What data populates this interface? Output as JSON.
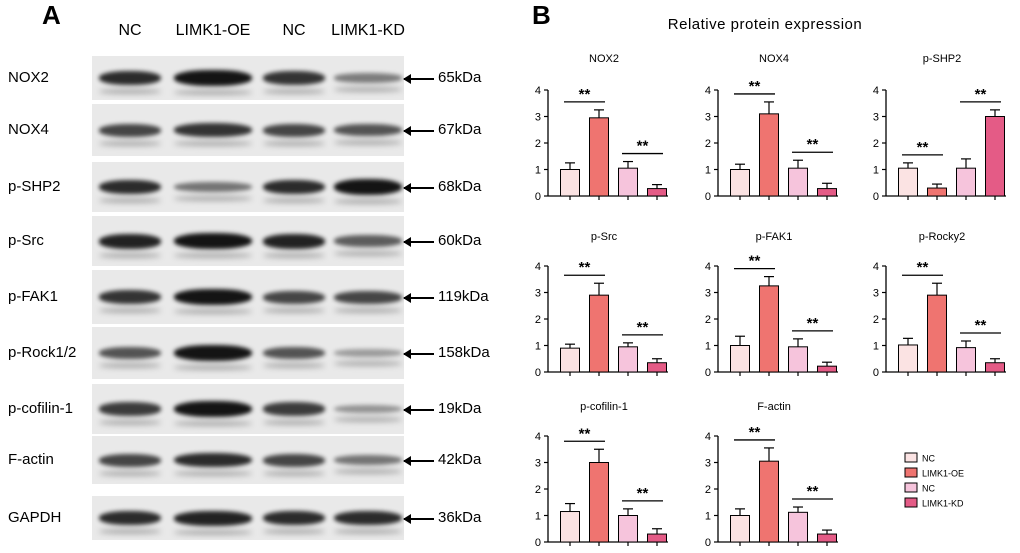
{
  "panel_a": {
    "letter": "A",
    "lanes": [
      "NC",
      "LIMK1-OE",
      "NC",
      "LIMK1-KD"
    ],
    "blots": [
      {
        "label": "NOX2",
        "kda": "65kDa",
        "bands": [
          0.85,
          1.0,
          0.8,
          0.35
        ]
      },
      {
        "label": "NOX4",
        "kda": "67kDa",
        "bands": [
          0.7,
          0.8,
          0.7,
          0.6
        ]
      },
      {
        "label": "p-SHP2",
        "kda": "68kDa",
        "bands": [
          0.85,
          0.4,
          0.85,
          1.0
        ]
      },
      {
        "label": "p-Src",
        "kda": "60kDa",
        "bands": [
          0.9,
          1.0,
          0.9,
          0.55
        ]
      },
      {
        "label": "p-FAK1",
        "kda": "119kDa",
        "bands": [
          0.8,
          1.0,
          0.7,
          0.7
        ]
      },
      {
        "label": "p-Rock1/2",
        "kda": "158kDa",
        "bands": [
          0.6,
          1.0,
          0.6,
          0.15
        ]
      },
      {
        "label": "p-cofilin-1",
        "kda": "19kDa",
        "bands": [
          0.75,
          1.0,
          0.75,
          0.2
        ]
      },
      {
        "label": "F-actin",
        "kda": "42kDa",
        "bands": [
          0.7,
          0.85,
          0.7,
          0.4
        ]
      },
      {
        "label": "GAPDH",
        "kda": "36kDa",
        "bands": [
          0.85,
          0.9,
          0.85,
          0.85
        ]
      }
    ]
  },
  "panel_b": {
    "letter": "B",
    "title": "Relative  protein  expression",
    "legend": [
      {
        "label": "NC",
        "color": "#fbe3e3"
      },
      {
        "label": "LIMK1-OE",
        "color": "#ef7470"
      },
      {
        "label": "NC",
        "color": "#f6c4dc"
      },
      {
        "label": "LIMK1-KD",
        "color": "#e45b86"
      }
    ]
  },
  "chart_data": [
    {
      "type": "bar",
      "title": "NOX2",
      "categories": [
        "NC",
        "LIMK1-OE",
        "NC",
        "LIMK1-KD"
      ],
      "values": [
        1.0,
        2.95,
        1.05,
        0.28
      ],
      "errors": [
        0.25,
        0.3,
        0.25,
        0.15
      ],
      "ylim": [
        0,
        4
      ],
      "yticks": [
        0,
        1,
        2,
        3,
        4
      ],
      "annotations": [
        "**",
        "**"
      ]
    },
    {
      "type": "bar",
      "title": "NOX4",
      "categories": [
        "NC",
        "LIMK1-OE",
        "NC",
        "LIMK1-KD"
      ],
      "values": [
        1.0,
        3.1,
        1.05,
        0.28
      ],
      "errors": [
        0.2,
        0.45,
        0.3,
        0.2
      ],
      "ylim": [
        0,
        4
      ],
      "yticks": [
        0,
        1,
        2,
        3,
        4
      ],
      "annotations": [
        "**",
        "**"
      ]
    },
    {
      "type": "bar",
      "title": "p-SHP2",
      "categories": [
        "NC",
        "LIMK1-OE",
        "NC",
        "LIMK1-KD"
      ],
      "values": [
        1.05,
        0.3,
        1.05,
        3.0
      ],
      "errors": [
        0.2,
        0.15,
        0.35,
        0.25
      ],
      "ylim": [
        0,
        4
      ],
      "yticks": [
        0,
        1,
        2,
        3,
        4
      ],
      "annotations": [
        "**",
        "**"
      ]
    },
    {
      "type": "bar",
      "title": "p-Src",
      "categories": [
        "NC",
        "LIMK1-OE",
        "NC",
        "LIMK1-KD"
      ],
      "values": [
        0.9,
        2.9,
        0.95,
        0.35
      ],
      "errors": [
        0.15,
        0.45,
        0.15,
        0.15
      ],
      "ylim": [
        0,
        4
      ],
      "yticks": [
        0,
        1,
        2,
        3,
        4
      ],
      "annotations": [
        "**",
        "**"
      ]
    },
    {
      "type": "bar",
      "title": "p-FAK1",
      "categories": [
        "NC",
        "LIMK1-OE",
        "NC",
        "LIMK1-KD"
      ],
      "values": [
        1.0,
        3.25,
        0.95,
        0.22
      ],
      "errors": [
        0.35,
        0.35,
        0.3,
        0.15
      ],
      "ylim": [
        0,
        4
      ],
      "yticks": [
        0,
        1,
        2,
        3,
        4
      ],
      "annotations": [
        "**",
        "**"
      ]
    },
    {
      "type": "bar",
      "title": "p-Rocky2",
      "categories": [
        "NC",
        "LIMK1-OE",
        "NC",
        "LIMK1-KD"
      ],
      "values": [
        1.02,
        2.9,
        0.92,
        0.35
      ],
      "errors": [
        0.25,
        0.45,
        0.25,
        0.15
      ],
      "ylim": [
        0,
        4
      ],
      "yticks": [
        0,
        1,
        2,
        3,
        4
      ],
      "annotations": [
        "**",
        "**"
      ]
    },
    {
      "type": "bar",
      "title": "p-cofilin-1",
      "categories": [
        "NC",
        "LIMK1-OE",
        "NC",
        "LIMK1-KD"
      ],
      "values": [
        1.15,
        3.0,
        1.0,
        0.3
      ],
      "errors": [
        0.3,
        0.5,
        0.25,
        0.2
      ],
      "ylim": [
        0,
        4
      ],
      "yticks": [
        0,
        1,
        2,
        3,
        4
      ],
      "annotations": [
        "**",
        "**"
      ]
    },
    {
      "type": "bar",
      "title": "F-actin",
      "categories": [
        "NC",
        "LIMK1-OE",
        "NC",
        "LIMK1-KD"
      ],
      "values": [
        1.0,
        3.05,
        1.12,
        0.3
      ],
      "errors": [
        0.25,
        0.5,
        0.2,
        0.15
      ],
      "ylim": [
        0,
        4
      ],
      "yticks": [
        0,
        1,
        2,
        3,
        4
      ],
      "annotations": [
        "**",
        "**"
      ]
    }
  ]
}
